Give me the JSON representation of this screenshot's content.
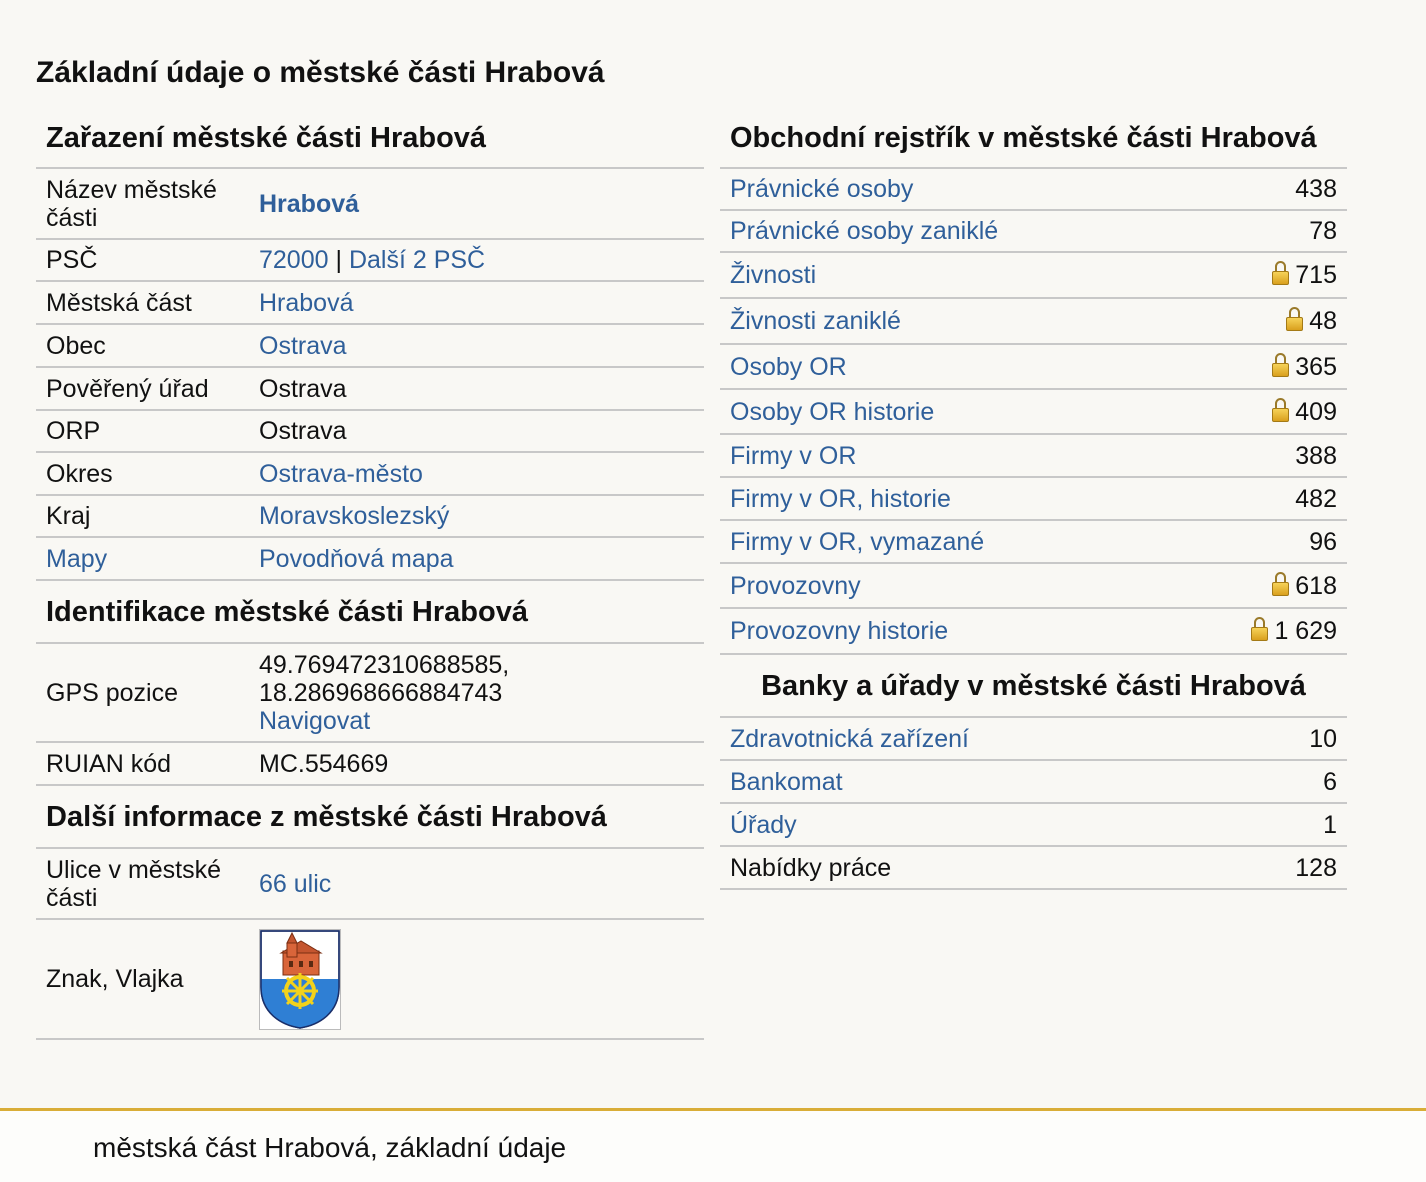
{
  "page_title": "Základní údaje o městské části Hrabová",
  "left": {
    "classification": {
      "title": "Zařazení městské části Hrabová",
      "name_label": "Název městské části",
      "name_value": "Hrabová",
      "psc_label": "PSČ",
      "psc_value": "72000",
      "psc_sep": "|",
      "psc_more": "Další 2 PSČ",
      "district_part_label": "Městská část",
      "district_part_value": "Hrabová",
      "municipality_label": "Obec",
      "municipality_value": "Ostrava",
      "authorized_office_label": "Pověřený úřad",
      "authorized_office_value": "Ostrava",
      "orp_label": "ORP",
      "orp_value": "Ostrava",
      "okres_label": "Okres",
      "okres_value": "Ostrava-město",
      "kraj_label": "Kraj",
      "kraj_value": "Moravskoslezský",
      "maps_label": "Mapy",
      "maps_value": "Povodňová mapa"
    },
    "identification": {
      "title": "Identifikace městské části Hrabová",
      "gps_label": "GPS pozice",
      "gps_lat": "49.769472310688585,",
      "gps_lon": "18.286968666884743",
      "navigate": "Navigovat",
      "ruian_label": "RUIAN kód",
      "ruian_value": "MC.554669"
    },
    "more_info": {
      "title": "Další informace z městské části Hrabová",
      "streets_label": "Ulice v městské části",
      "streets_value": "66 ulic",
      "emblem_label": "Znak, Vlajka"
    }
  },
  "right": {
    "registry": {
      "title": "Obchodní rejstřík v městské části Hrabová",
      "rows": [
        {
          "label": "Právnické osoby",
          "value": "438",
          "locked": false
        },
        {
          "label": "Právnické osoby zaniklé",
          "value": "78",
          "locked": false
        },
        {
          "label": "Živnosti",
          "value": "715",
          "locked": true
        },
        {
          "label": "Živnosti zaniklé",
          "value": "48",
          "locked": true
        },
        {
          "label": "Osoby OR",
          "value": "365",
          "locked": true
        },
        {
          "label": "Osoby OR historie",
          "value": "409",
          "locked": true
        },
        {
          "label": "Firmy v OR",
          "value": "388",
          "locked": false
        },
        {
          "label": "Firmy v OR, historie",
          "value": "482",
          "locked": false
        },
        {
          "label": "Firmy v OR, vymazané",
          "value": "96",
          "locked": false
        },
        {
          "label": "Provozovny",
          "value": "618",
          "locked": true
        },
        {
          "label": "Provozovny historie",
          "value": "1 629",
          "locked": true
        }
      ]
    },
    "banks": {
      "title": "Banky a úřady v městské části Hrabová",
      "rows": [
        {
          "label": "Zdravotnická zařízení",
          "value": "10"
        },
        {
          "label": "Bankomat",
          "value": "6"
        },
        {
          "label": "Úřady",
          "value": "1"
        },
        {
          "label": "Nabídky práce",
          "value": "128"
        }
      ]
    }
  },
  "footer": {
    "text": "městská část Hrabová, základní údaje"
  },
  "colors": {
    "link": "#2f5f9a",
    "footer_accent": "#d9ad37",
    "background": "#f9f8f4"
  },
  "icons": {
    "lock": "lock-icon",
    "emblem": "coat-of-arms"
  }
}
